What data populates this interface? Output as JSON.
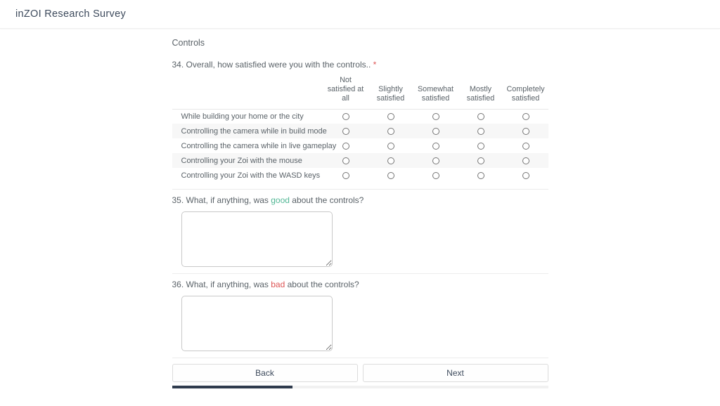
{
  "header": {
    "title": "inZOI Research Survey"
  },
  "section": {
    "title": "Controls"
  },
  "colors": {
    "title_text": "#3d4a5c",
    "body_text": "#5a6268",
    "good_highlight": "#52b795",
    "bad_highlight": "#dd5454",
    "required_asterisk": "#dd5454",
    "progress_fill": "#303c4e",
    "zebra_stripe": "#f7f7f7"
  },
  "question34": {
    "label": "34. Overall, how satisfied were you with the controls..",
    "required_marker": "*",
    "columns": [
      "Not satisfied at all",
      "Slightly satisfied",
      "Somewhat satisfied",
      "Mostly satisfied",
      "Completely satisfied"
    ],
    "rows": [
      "While building your home or the city",
      "Controlling the camera while in build mode",
      "Controlling the camera while in live gameplay",
      "Controlling your Zoi with the mouse",
      "Controlling your Zoi with the WASD keys"
    ],
    "selected": [
      null,
      null,
      null,
      null,
      null
    ]
  },
  "question35": {
    "prefix": "35. What, if anything, was ",
    "highlight": "good",
    "suffix": " about the controls?",
    "value": "",
    "placeholder": ""
  },
  "question36": {
    "prefix": "36. What, if anything, was ",
    "highlight": "bad",
    "suffix": " about the controls?",
    "value": "",
    "placeholder": ""
  },
  "navigation": {
    "back_label": "Back",
    "next_label": "Next"
  },
  "progress": {
    "percent": 32
  }
}
